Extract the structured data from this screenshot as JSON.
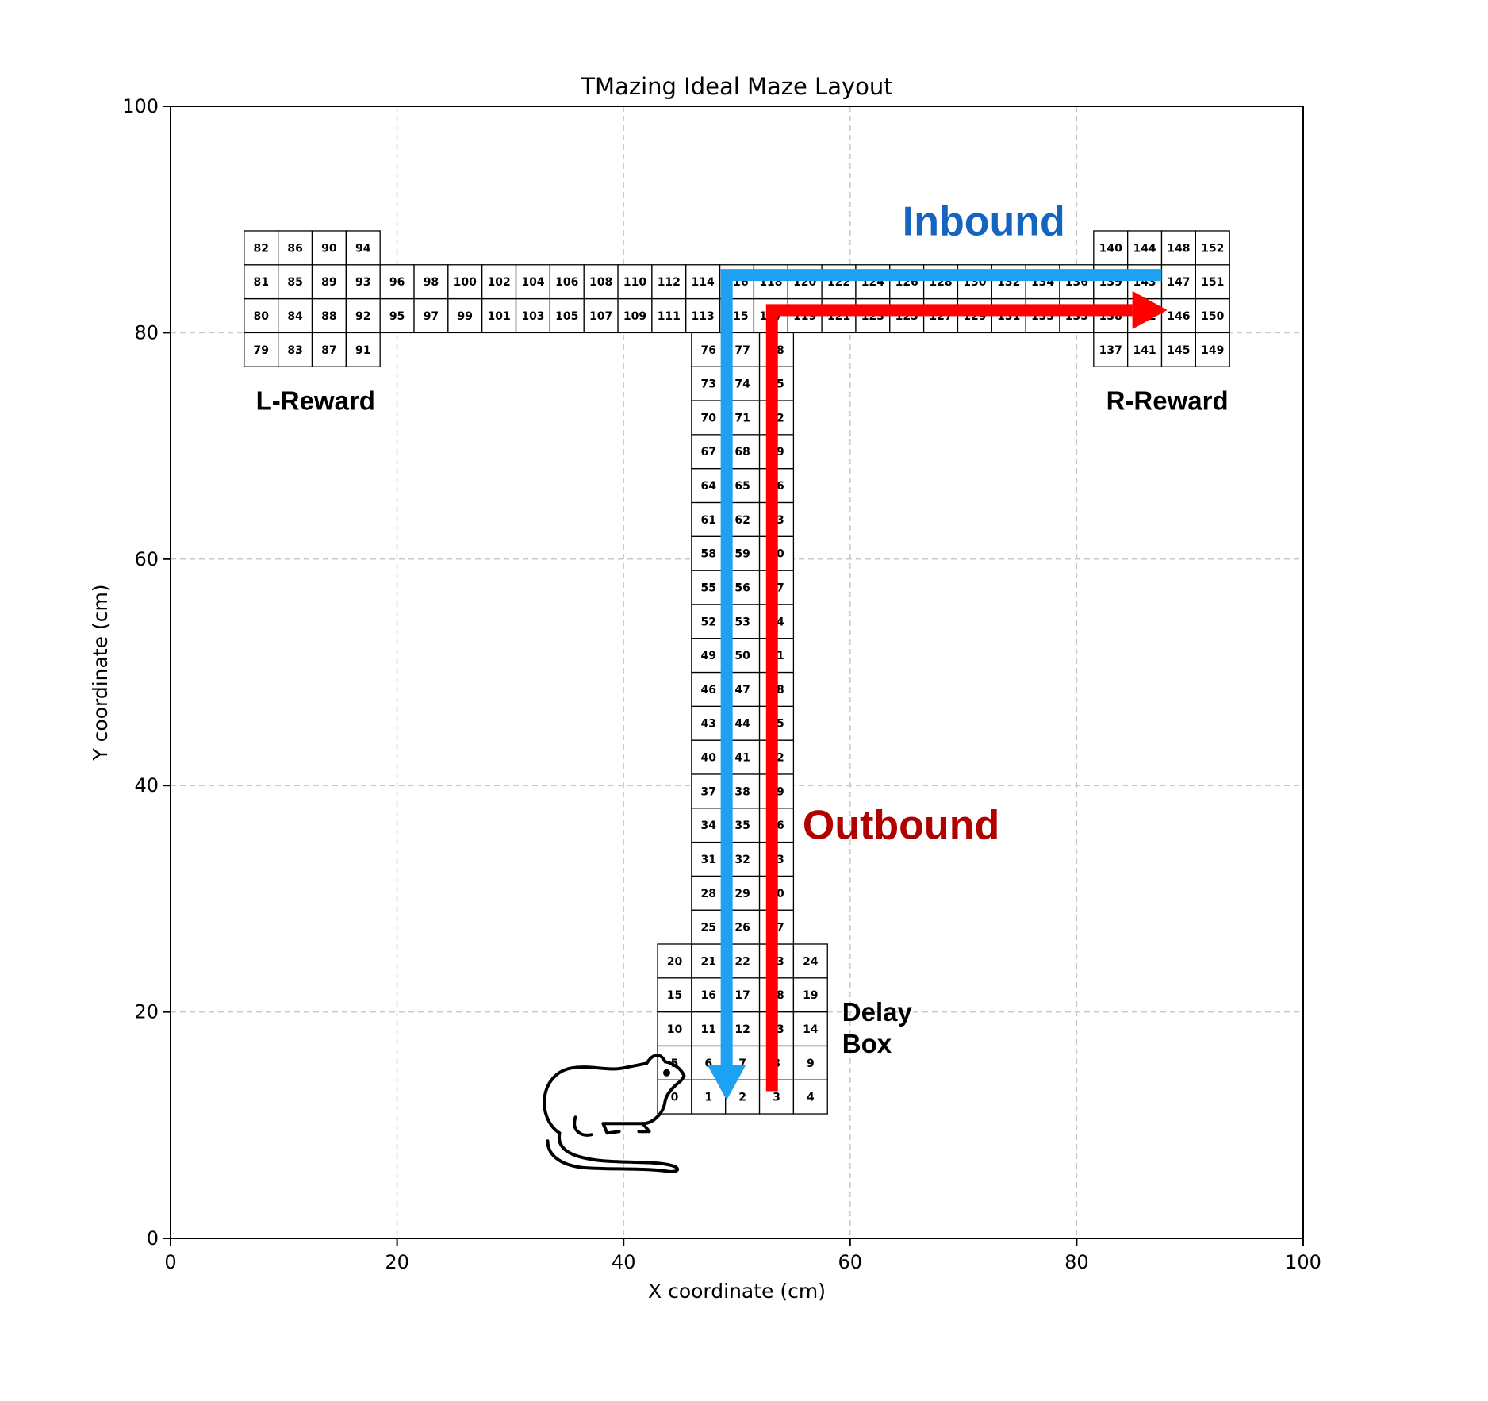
{
  "chart_data": {
    "type": "scatter",
    "title": "TMazing Ideal Maze Layout",
    "xlabel": "X coordinate (cm)",
    "ylabel": "Y coordinate (cm)",
    "xlim": [
      0,
      100
    ],
    "ylim": [
      0,
      100
    ],
    "xticks": [
      0,
      20,
      40,
      60,
      80,
      100
    ],
    "yticks": [
      0,
      20,
      40,
      60,
      80,
      100
    ],
    "grid": true,
    "cell_size_cm": 3,
    "bins": [
      {
        "id": 0,
        "x": 43,
        "y": 11
      },
      {
        "id": 1,
        "x": 46,
        "y": 11
      },
      {
        "id": 2,
        "x": 49,
        "y": 11
      },
      {
        "id": 3,
        "x": 52,
        "y": 11
      },
      {
        "id": 4,
        "x": 55,
        "y": 11
      },
      {
        "id": 5,
        "x": 43,
        "y": 14
      },
      {
        "id": 6,
        "x": 46,
        "y": 14
      },
      {
        "id": 7,
        "x": 49,
        "y": 14
      },
      {
        "id": 8,
        "x": 52,
        "y": 14
      },
      {
        "id": 9,
        "x": 55,
        "y": 14
      },
      {
        "id": 10,
        "x": 43,
        "y": 17
      },
      {
        "id": 11,
        "x": 46,
        "y": 17
      },
      {
        "id": 12,
        "x": 49,
        "y": 17
      },
      {
        "id": 13,
        "x": 52,
        "y": 17
      },
      {
        "id": 14,
        "x": 55,
        "y": 17
      },
      {
        "id": 15,
        "x": 43,
        "y": 20
      },
      {
        "id": 16,
        "x": 46,
        "y": 20
      },
      {
        "id": 17,
        "x": 49,
        "y": 20
      },
      {
        "id": 18,
        "x": 52,
        "y": 20
      },
      {
        "id": 19,
        "x": 55,
        "y": 20
      },
      {
        "id": 20,
        "x": 43,
        "y": 23
      },
      {
        "id": 21,
        "x": 46,
        "y": 23
      },
      {
        "id": 22,
        "x": 49,
        "y": 23
      },
      {
        "id": 23,
        "x": 52,
        "y": 23
      },
      {
        "id": 24,
        "x": 55,
        "y": 23
      },
      {
        "id": 25,
        "x": 46,
        "y": 26
      },
      {
        "id": 26,
        "x": 49,
        "y": 26
      },
      {
        "id": 27,
        "x": 52,
        "y": 26
      },
      {
        "id": 28,
        "x": 46,
        "y": 29
      },
      {
        "id": 29,
        "x": 49,
        "y": 29
      },
      {
        "id": 30,
        "x": 52,
        "y": 29
      },
      {
        "id": 31,
        "x": 46,
        "y": 32
      },
      {
        "id": 32,
        "x": 49,
        "y": 32
      },
      {
        "id": 33,
        "x": 52,
        "y": 32
      },
      {
        "id": 34,
        "x": 46,
        "y": 35
      },
      {
        "id": 35,
        "x": 49,
        "y": 35
      },
      {
        "id": 36,
        "x": 52,
        "y": 35
      },
      {
        "id": 37,
        "x": 46,
        "y": 38
      },
      {
        "id": 38,
        "x": 49,
        "y": 38
      },
      {
        "id": 39,
        "x": 52,
        "y": 38
      },
      {
        "id": 40,
        "x": 46,
        "y": 41
      },
      {
        "id": 41,
        "x": 49,
        "y": 41
      },
      {
        "id": 42,
        "x": 52,
        "y": 41
      },
      {
        "id": 43,
        "x": 46,
        "y": 44
      },
      {
        "id": 44,
        "x": 49,
        "y": 44
      },
      {
        "id": 45,
        "x": 52,
        "y": 44
      },
      {
        "id": 46,
        "x": 46,
        "y": 47
      },
      {
        "id": 47,
        "x": 49,
        "y": 47
      },
      {
        "id": 48,
        "x": 52,
        "y": 47
      },
      {
        "id": 49,
        "x": 46,
        "y": 50
      },
      {
        "id": 50,
        "x": 49,
        "y": 50
      },
      {
        "id": 51,
        "x": 52,
        "y": 50
      },
      {
        "id": 52,
        "x": 46,
        "y": 53
      },
      {
        "id": 53,
        "x": 49,
        "y": 53
      },
      {
        "id": 54,
        "x": 52,
        "y": 53
      },
      {
        "id": 55,
        "x": 46,
        "y": 56
      },
      {
        "id": 56,
        "x": 49,
        "y": 56
      },
      {
        "id": 57,
        "x": 52,
        "y": 56
      },
      {
        "id": 58,
        "x": 46,
        "y": 59
      },
      {
        "id": 59,
        "x": 49,
        "y": 59
      },
      {
        "id": 60,
        "x": 52,
        "y": 59
      },
      {
        "id": 61,
        "x": 46,
        "y": 62
      },
      {
        "id": 62,
        "x": 49,
        "y": 62
      },
      {
        "id": 63,
        "x": 52,
        "y": 62
      },
      {
        "id": 64,
        "x": 46,
        "y": 65
      },
      {
        "id": 65,
        "x": 49,
        "y": 65
      },
      {
        "id": 66,
        "x": 52,
        "y": 65
      },
      {
        "id": 67,
        "x": 46,
        "y": 68
      },
      {
        "id": 68,
        "x": 49,
        "y": 68
      },
      {
        "id": 69,
        "x": 52,
        "y": 68
      },
      {
        "id": 70,
        "x": 46,
        "y": 71
      },
      {
        "id": 71,
        "x": 49,
        "y": 71
      },
      {
        "id": 72,
        "x": 52,
        "y": 71
      },
      {
        "id": 73,
        "x": 46,
        "y": 74
      },
      {
        "id": 74,
        "x": 49,
        "y": 74
      },
      {
        "id": 75,
        "x": 52,
        "y": 74
      },
      {
        "id": 76,
        "x": 46,
        "y": 77
      },
      {
        "id": 77,
        "x": 49,
        "y": 77
      },
      {
        "id": 78,
        "x": 52,
        "y": 77
      },
      {
        "id": 79,
        "x": 6.5,
        "y": 77
      },
      {
        "id": 80,
        "x": 6.5,
        "y": 80
      },
      {
        "id": 81,
        "x": 6.5,
        "y": 83
      },
      {
        "id": 82,
        "x": 6.5,
        "y": 86
      },
      {
        "id": 83,
        "x": 9.5,
        "y": 77
      },
      {
        "id": 84,
        "x": 9.5,
        "y": 80
      },
      {
        "id": 85,
        "x": 9.5,
        "y": 83
      },
      {
        "id": 86,
        "x": 9.5,
        "y": 86
      },
      {
        "id": 87,
        "x": 12.5,
        "y": 77
      },
      {
        "id": 88,
        "x": 12.5,
        "y": 80
      },
      {
        "id": 89,
        "x": 12.5,
        "y": 83
      },
      {
        "id": 90,
        "x": 12.5,
        "y": 86
      },
      {
        "id": 91,
        "x": 15.5,
        "y": 77
      },
      {
        "id": 92,
        "x": 15.5,
        "y": 80
      },
      {
        "id": 93,
        "x": 15.5,
        "y": 83
      },
      {
        "id": 94,
        "x": 15.5,
        "y": 86
      },
      {
        "id": 95,
        "x": 18.5,
        "y": 80
      },
      {
        "id": 96,
        "x": 18.5,
        "y": 83
      },
      {
        "id": 97,
        "x": 21.5,
        "y": 80
      },
      {
        "id": 98,
        "x": 21.5,
        "y": 83
      },
      {
        "id": 99,
        "x": 24.5,
        "y": 80
      },
      {
        "id": 100,
        "x": 24.5,
        "y": 83
      },
      {
        "id": 101,
        "x": 27.5,
        "y": 80
      },
      {
        "id": 102,
        "x": 27.5,
        "y": 83
      },
      {
        "id": 103,
        "x": 30.5,
        "y": 80
      },
      {
        "id": 104,
        "x": 30.5,
        "y": 83
      },
      {
        "id": 105,
        "x": 33.5,
        "y": 80
      },
      {
        "id": 106,
        "x": 33.5,
        "y": 83
      },
      {
        "id": 107,
        "x": 36.5,
        "y": 80
      },
      {
        "id": 108,
        "x": 36.5,
        "y": 83
      },
      {
        "id": 109,
        "x": 39.5,
        "y": 80
      },
      {
        "id": 110,
        "x": 39.5,
        "y": 83
      },
      {
        "id": 111,
        "x": 42.5,
        "y": 80
      },
      {
        "id": 112,
        "x": 42.5,
        "y": 83
      },
      {
        "id": 113,
        "x": 45.5,
        "y": 80
      },
      {
        "id": 114,
        "x": 45.5,
        "y": 83
      },
      {
        "id": 115,
        "x": 48.5,
        "y": 80
      },
      {
        "id": 116,
        "x": 48.5,
        "y": 83
      },
      {
        "id": 117,
        "x": 51.5,
        "y": 80
      },
      {
        "id": 118,
        "x": 51.5,
        "y": 83
      },
      {
        "id": 119,
        "x": 54.5,
        "y": 80
      },
      {
        "id": 120,
        "x": 54.5,
        "y": 83
      },
      {
        "id": 121,
        "x": 57.5,
        "y": 80
      },
      {
        "id": 122,
        "x": 57.5,
        "y": 83
      },
      {
        "id": 123,
        "x": 60.5,
        "y": 80
      },
      {
        "id": 124,
        "x": 60.5,
        "y": 83
      },
      {
        "id": 125,
        "x": 63.5,
        "y": 80
      },
      {
        "id": 126,
        "x": 63.5,
        "y": 83
      },
      {
        "id": 127,
        "x": 66.5,
        "y": 80
      },
      {
        "id": 128,
        "x": 66.5,
        "y": 83
      },
      {
        "id": 129,
        "x": 69.5,
        "y": 80
      },
      {
        "id": 130,
        "x": 69.5,
        "y": 83
      },
      {
        "id": 131,
        "x": 72.5,
        "y": 80
      },
      {
        "id": 132,
        "x": 72.5,
        "y": 83
      },
      {
        "id": 133,
        "x": 75.5,
        "y": 80
      },
      {
        "id": 134,
        "x": 75.5,
        "y": 83
      },
      {
        "id": 135,
        "x": 78.5,
        "y": 80
      },
      {
        "id": 136,
        "x": 78.5,
        "y": 83
      },
      {
        "id": 137,
        "x": 81.5,
        "y": 77
      },
      {
        "id": 138,
        "x": 81.5,
        "y": 80
      },
      {
        "id": 139,
        "x": 81.5,
        "y": 83
      },
      {
        "id": 140,
        "x": 81.5,
        "y": 86
      },
      {
        "id": 141,
        "x": 84.5,
        "y": 77
      },
      {
        "id": 142,
        "x": 84.5,
        "y": 80
      },
      {
        "id": 143,
        "x": 84.5,
        "y": 83
      },
      {
        "id": 144,
        "x": 84.5,
        "y": 86
      },
      {
        "id": 145,
        "x": 87.5,
        "y": 77
      },
      {
        "id": 146,
        "x": 87.5,
        "y": 80
      },
      {
        "id": 147,
        "x": 87.5,
        "y": 83
      },
      {
        "id": 148,
        "x": 87.5,
        "y": 86
      },
      {
        "id": 149,
        "x": 90.5,
        "y": 77
      },
      {
        "id": 150,
        "x": 90.5,
        "y": 80
      },
      {
        "id": 151,
        "x": 90.5,
        "y": 83
      },
      {
        "id": 152,
        "x": 90.5,
        "y": 86
      }
    ],
    "region_labels": [
      {
        "text": "L-Reward",
        "x": 12.8,
        "y": 73.2
      },
      {
        "text": "R-Reward",
        "x": 88.0,
        "y": 73.2
      },
      {
        "text": "Delay",
        "x": 59.3,
        "y": 19.2
      },
      {
        "text": "Box",
        "x": 59.3,
        "y": 16.4
      }
    ],
    "paths": [
      {
        "label": "Inbound",
        "color": "#1da1f2",
        "label_color": "#1565c0",
        "points": [
          [
            87.5,
            85.1
          ],
          [
            49.1,
            85.1
          ],
          [
            49.1,
            12.2
          ]
        ],
        "label_x": 71.8,
        "label_y": 88.6
      },
      {
        "label": "Outbound",
        "color": "#ff0000",
        "label_color": "#b00000",
        "points": [
          [
            53.1,
            13
          ],
          [
            53.1,
            82
          ],
          [
            88,
            82
          ]
        ],
        "label_x": 64.5,
        "label_y": 35.3
      }
    ],
    "rat_icon": {
      "x": 41,
      "y": 10
    }
  }
}
